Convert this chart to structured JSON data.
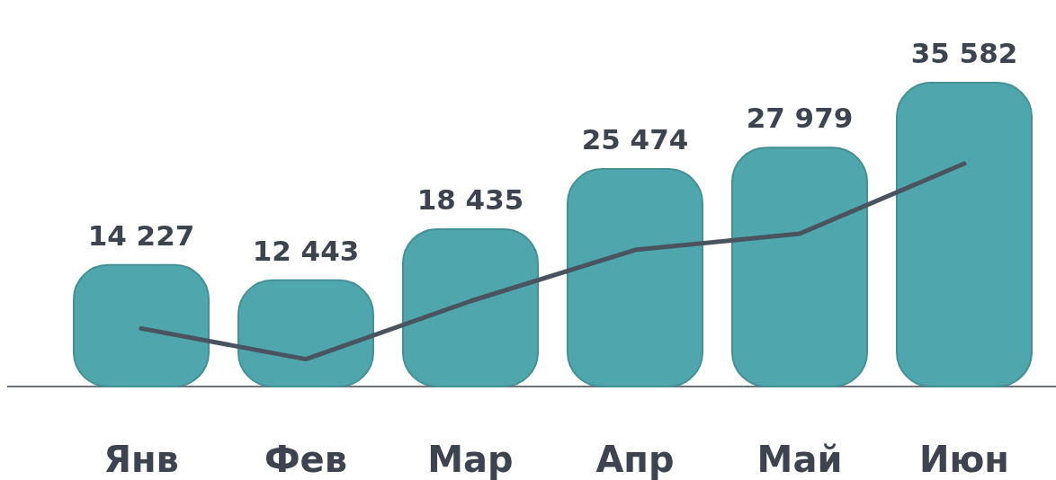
{
  "chart_data": {
    "type": "bar",
    "categories": [
      "Янв",
      "Фев",
      "Мар",
      "Апр",
      "Май",
      "Июн"
    ],
    "series": [
      {
        "color": "#4fa6ac",
        "values": [
          14227,
          12443,
          18435,
          25474,
          27979,
          35582
        ],
        "value_labels": [
          "14 227",
          "12 443",
          "18 435",
          "25 474",
          "27 979",
          "35 582"
        ]
      },
      {
        "type": "line",
        "color": "#4a5360",
        "values": [
          6800,
          3200,
          10000,
          16000,
          17900,
          26100
        ]
      }
    ]
  }
}
